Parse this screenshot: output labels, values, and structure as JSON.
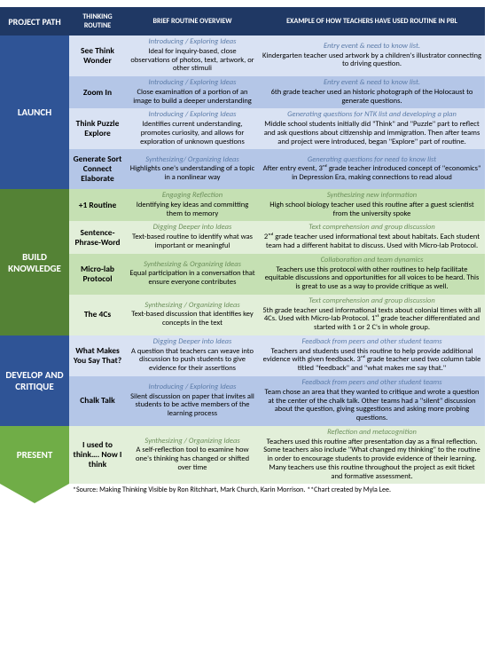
{
  "header": {
    "path": "PROJECT PATH",
    "routine": "THINKING ROUTINE",
    "overview": "BRIEF ROUTINE OVERVIEW",
    "example": "EXAMPLE OF HOW TEACHERS HAVE USED ROUTINE IN PBL"
  },
  "launch": {
    "label": "LAUNCH",
    "rows": [
      {
        "name": "See Think Wonder",
        "ov_sub": "Introducing / Exploring Ideas",
        "ov": "Ideal for inquiry-based, close observations of photos, text, artwork, or other stimuli",
        "ex_sub": "Entry event & need to know list.",
        "ex": "Kindergarten teacher used artwork by a children's illustrator connecting to driving question."
      },
      {
        "name": "Zoom In",
        "ov_sub": "Introducing / Exploring Ideas",
        "ov": "Close examination of a portion of an image to build a deeper understanding",
        "ex_sub": "Entry event & need to know list.",
        "ex": "6th grade teacher used an historic photograph of the Holocaust to generate questions."
      },
      {
        "name": "Think Puzzle Explore",
        "ov_sub": "Introducing / Exploring Ideas",
        "ov": "Identifies current understanding, promotes curiosity, and allows for exploration of unknown questions",
        "ex_sub": "Generating questions for NTK list and developing a plan",
        "ex": "Middle school students initially did \"Think\" and \"Puzzle\" part to reflect and ask questions about citizenship and immigration. Then after teams and project were introduced, began \"Explore\" part of routine."
      },
      {
        "name": "Generate Sort Connect Elaborate",
        "ov_sub": "Synthesizing/ Organizing Ideas",
        "ov": "Highlights one's understanding of a topic in a nonlinear way",
        "ex_sub": "Generating questions for need to know list",
        "ex": "After entry event, 3ʳᵈ grade teacher introduced concept of \"economics\" in Depression Era, making connections to read aloud"
      }
    ]
  },
  "build": {
    "label": "BUILD KNOWLEDGE",
    "rows": [
      {
        "name": "+1 Routine",
        "ov_sub": "Engaging Reflection",
        "ov": "Identifying key ideas and committing them to memory",
        "ex_sub": "Synthesizing new information",
        "ex": "High school biology teacher used this routine after a guest scientist from the university spoke"
      },
      {
        "name": "Sentence-Phrase-Word",
        "ov_sub": "Digging Deeper into Ideas",
        "ov": "Text-based routine to identify what was important or meaningful",
        "ex_sub": "Text comprehension and group discussion",
        "ex": "2ⁿᵈ grade teacher used informational text about habitats. Each student team had a different habitat to discuss. Used with Micro-lab Protocol."
      },
      {
        "name": "Micro-lab Protocol",
        "ov_sub": "Synthesizing & Organizing Ideas",
        "ov": "Equal participation in a conversation that ensure everyone contributes",
        "ex_sub": "Collaboration and team dynamics",
        "ex": "Teachers use this protocol with other routines to help facilitate equitable discussions and opportunities for all voices to be heard. This is great to use as a way to provide critique as well."
      },
      {
        "name": "The 4Cs",
        "ov_sub": "Synthesizing / Organizing Ideas",
        "ov": "Text-based discussion that identifies key concepts in the text",
        "ex_sub": "Text comprehension and group discussion",
        "ex": "5th grade teacher used informational texts about colonial times with all 4Cs. Used with Micro-lab Protocol. 1ˢᵗ grade teacher differentiated and started with 1 or 2 C's in whole group."
      }
    ]
  },
  "develop": {
    "label": "DEVELOP AND CRITIQUE",
    "rows": [
      {
        "name": "What Makes You Say That?",
        "ov_sub": "Digging Deeper into Ideas",
        "ov": "A question that teachers can weave into discussion to push students to give evidence for their assertions",
        "ex_sub": "Feedback from peers and other student teams",
        "ex": "Teachers and students used this routine to help provide additional evidence with given feedback. 3ʳᵈ grade teacher used two column table titled \"feedback\" and \"what makes me say that.\""
      },
      {
        "name": "Chalk Talk",
        "ov_sub": "Introducing / Exploring Ideas",
        "ov": "Silent discussion on paper that invites all students to be active members of the learning process",
        "ex_sub": "Feedback from peers and other student teams",
        "ex": "Team chose an area that they wanted to critique and wrote a question at the center of the chalk talk. Other teams had a \"silent\" discussion about the question, giving suggestions and asking more probing questions."
      }
    ]
  },
  "present": {
    "label": "PRESENT",
    "rows": [
      {
        "name": "I used to think…. Now I think",
        "ov_sub": "Synthesizing / Organizing Ideas",
        "ov": "A self-reflection tool to examine how one's thinking has changed or shifted over time",
        "ex_sub": "Reflection and metacognition",
        "ex": "Teachers used this routine after presentation day as a final reflection. Some teachers also include \"What changed my thinking\" to the routine in order to encourage students to provide evidence of their learning. Many teachers use this routine throughout the project as exit ticket and formative assessment."
      }
    ]
  },
  "source": "*Source: Making Thinking Visible by Ron Ritchhart, Mark Church, Karin Morrison. **Chart created by Myla Lee."
}
